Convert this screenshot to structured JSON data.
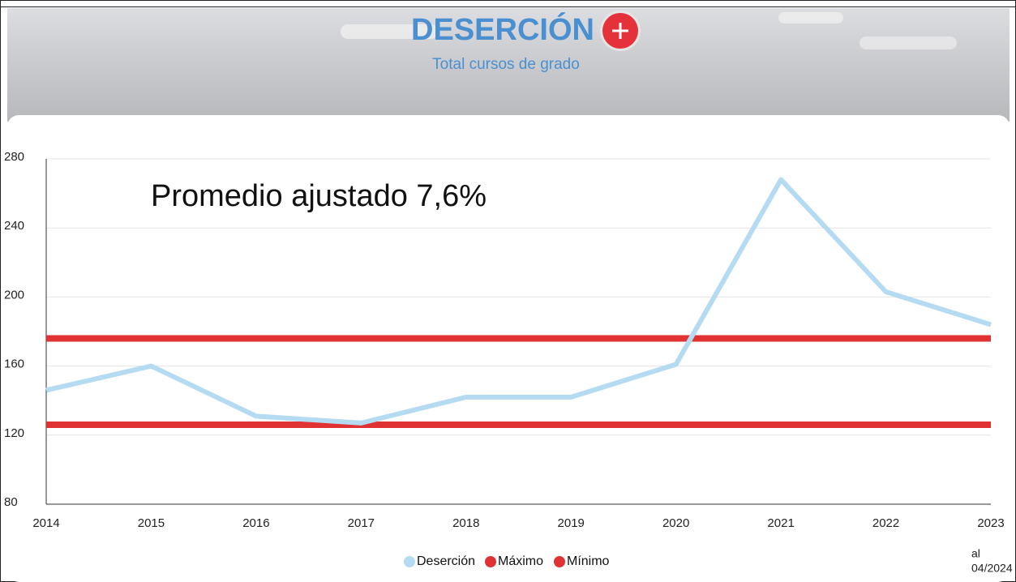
{
  "chart_data": {
    "type": "line",
    "title": "DESERCIÓN",
    "subtitle": "Total cursos de grado",
    "annotation": "Promedio ajustado 7,6%",
    "footnote": [
      "al",
      "04/2024"
    ],
    "categories": [
      "2014",
      "2015",
      "2016",
      "2017",
      "2018",
      "2019",
      "2020",
      "2021",
      "2022",
      "2023"
    ],
    "series": [
      {
        "name": "Deserción",
        "color": "#b5dbf3",
        "values": [
          146,
          160,
          131,
          127,
          142,
          142,
          161,
          268,
          203,
          184
        ]
      },
      {
        "name": "Máximo",
        "color": "#e03232",
        "values": [
          176,
          176,
          176,
          176,
          176,
          176,
          176,
          176,
          176,
          176
        ]
      },
      {
        "name": "Mínimo",
        "color": "#e03232",
        "values": [
          126,
          126,
          126,
          126,
          126,
          126,
          126,
          126,
          126,
          126
        ]
      }
    ],
    "ylim": [
      80,
      280
    ],
    "yticks": [
      80,
      120,
      160,
      200,
      240,
      280
    ],
    "grid": true
  }
}
